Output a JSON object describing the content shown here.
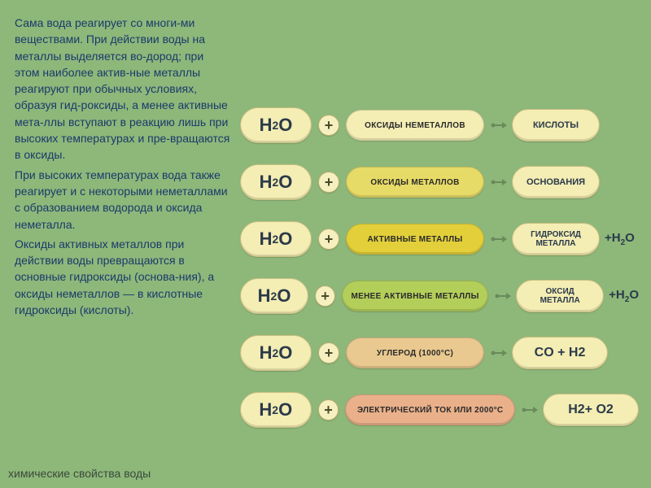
{
  "text": {
    "para1": "Сама вода реагирует со многи-ми веществами. При действии воды на металлы выделяется во-дород; при этом наиболее актив-ные металлы реагируют при обычных условиях, образуя гид-роксиды, а менее активные мета-ллы вступают в реакцию лишь при высоких температурах и пре-вращаются в оксиды.",
    "para2": "При высоких температурах вода также реагирует и с некоторыми неметаллами с образованием водорода и оксида неметалла.",
    "para3": "Оксиды активных металлов при действии воды превращаются в основные гидроксиды (основа-ния), а оксиды неметаллов — в кислотные гидроксиды (кислоты).",
    "footer": "химические свойства воды"
  },
  "reactions": [
    {
      "reactant": "ОКСИДЫ НЕМЕТАЛЛОВ",
      "reactant_bg": "#f4edb4",
      "product": "КИСЛОТЫ",
      "product_style": "small",
      "suffix": ""
    },
    {
      "reactant": "ОКСИДЫ МЕТАЛЛОВ",
      "reactant_bg": "#e7db67",
      "product": "ОСНОВАНИЯ",
      "product_style": "small",
      "suffix": ""
    },
    {
      "reactant": "АКТИВНЫЕ МЕТАЛЛЫ",
      "reactant_bg": "#e2cf3a",
      "product_line1": "ГИДРОКСИД",
      "product_line2": "МЕТАЛЛА",
      "product_style": "twoline",
      "suffix_html": "+H<span class='sub'>2</span>O"
    },
    {
      "reactant": "МЕНЕЕ АКТИВНЫЕ МЕТАЛЛЫ",
      "reactant_bg": "#b3cf5a",
      "product_line1": "ОКСИД",
      "product_line2": "МЕТАЛЛА",
      "product_style": "twoline",
      "suffix_html": "+H<span class='sub'>2</span>O"
    },
    {
      "reactant": "УГЛЕРОД  (1000°С)",
      "reactant_bg": "#e9c98f",
      "product_html": "CO + H<span class='sub'>2</span>",
      "product_style": "big",
      "suffix": ""
    },
    {
      "reactant": "ЭЛЕКТРИЧЕСКИЙ ТОК ИЛИ 2000°С",
      "reactant_bg": "#e9b08a",
      "product_html": "H<span class='sub'>2</span> + O<span class='sub'>2</span>",
      "product_style": "big",
      "suffix": ""
    }
  ],
  "arrow_color": "#6a8a5a",
  "h2o_label_html": "H<span class='sub'>2</span>O",
  "plus_label": "+"
}
